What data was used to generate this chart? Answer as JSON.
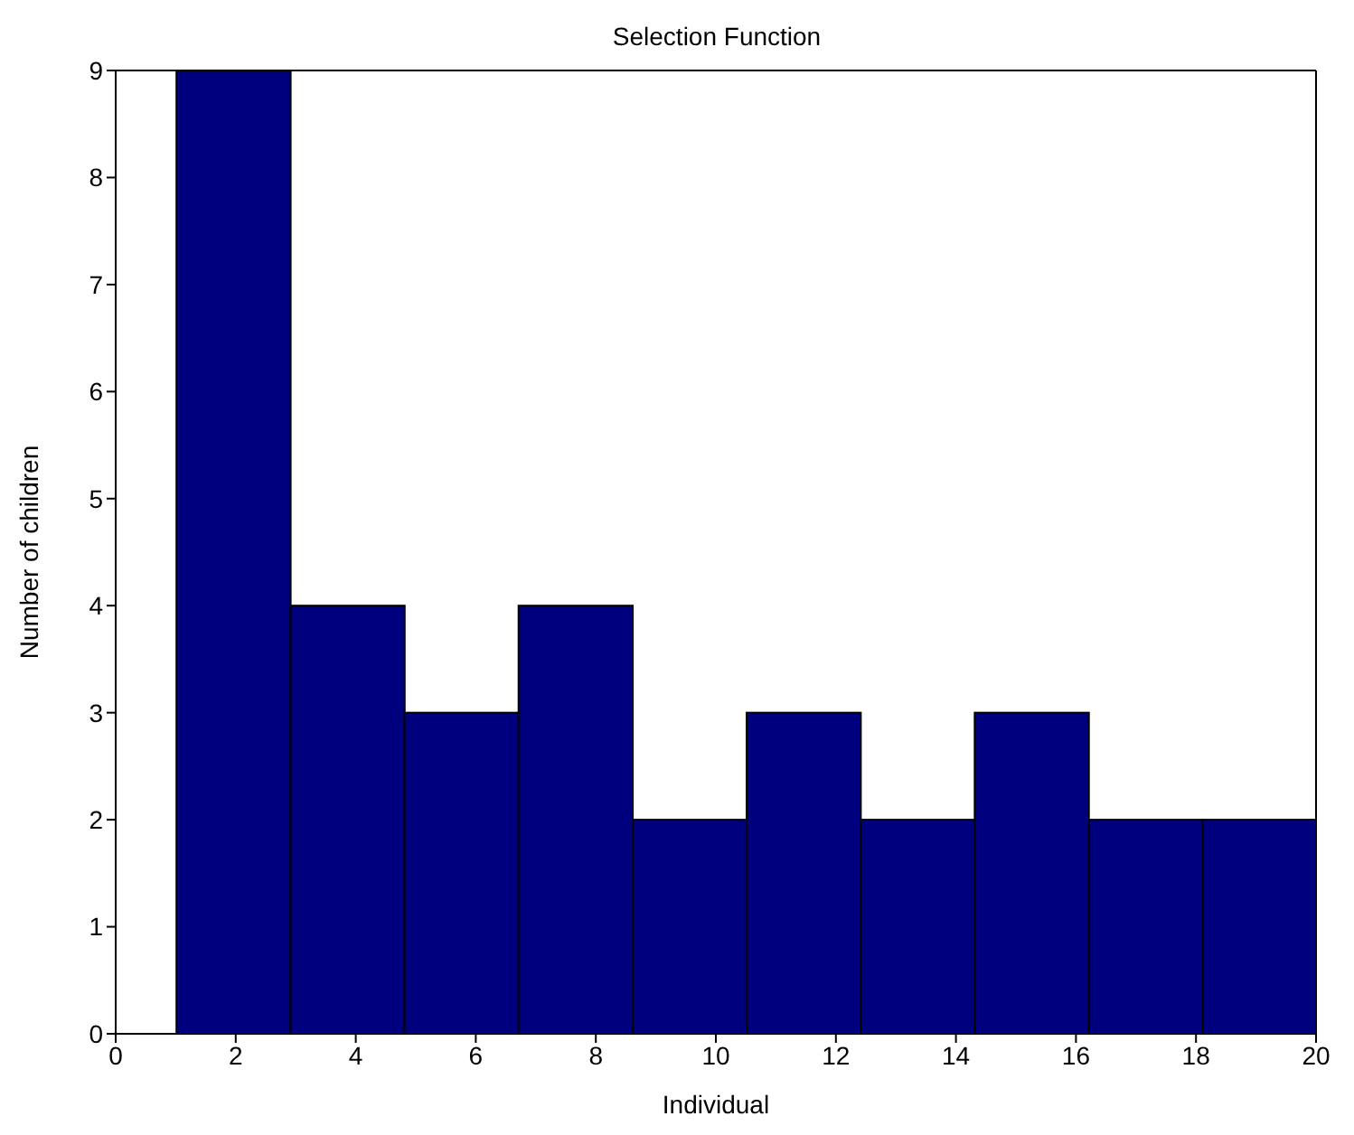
{
  "chart_data": {
    "type": "histogram",
    "title": "Selection Function",
    "xlabel": "Individual",
    "ylabel": "Number of children",
    "bins": [
      1,
      2.9,
      4.8,
      6.7,
      8.6,
      10.5,
      12.4,
      14.3,
      16.2,
      18.1,
      20
    ],
    "values": [
      9,
      4,
      3,
      4,
      2,
      3,
      2,
      3,
      2,
      2
    ],
    "color": "#00007f",
    "xlim": [
      0,
      20
    ],
    "xticks": [
      0,
      2,
      4,
      6,
      8,
      10,
      12,
      14,
      16,
      18,
      20
    ],
    "ylim": [
      0,
      9
    ],
    "yticks": [
      0,
      1,
      2,
      3,
      4,
      5,
      6,
      7,
      8,
      9
    ]
  }
}
